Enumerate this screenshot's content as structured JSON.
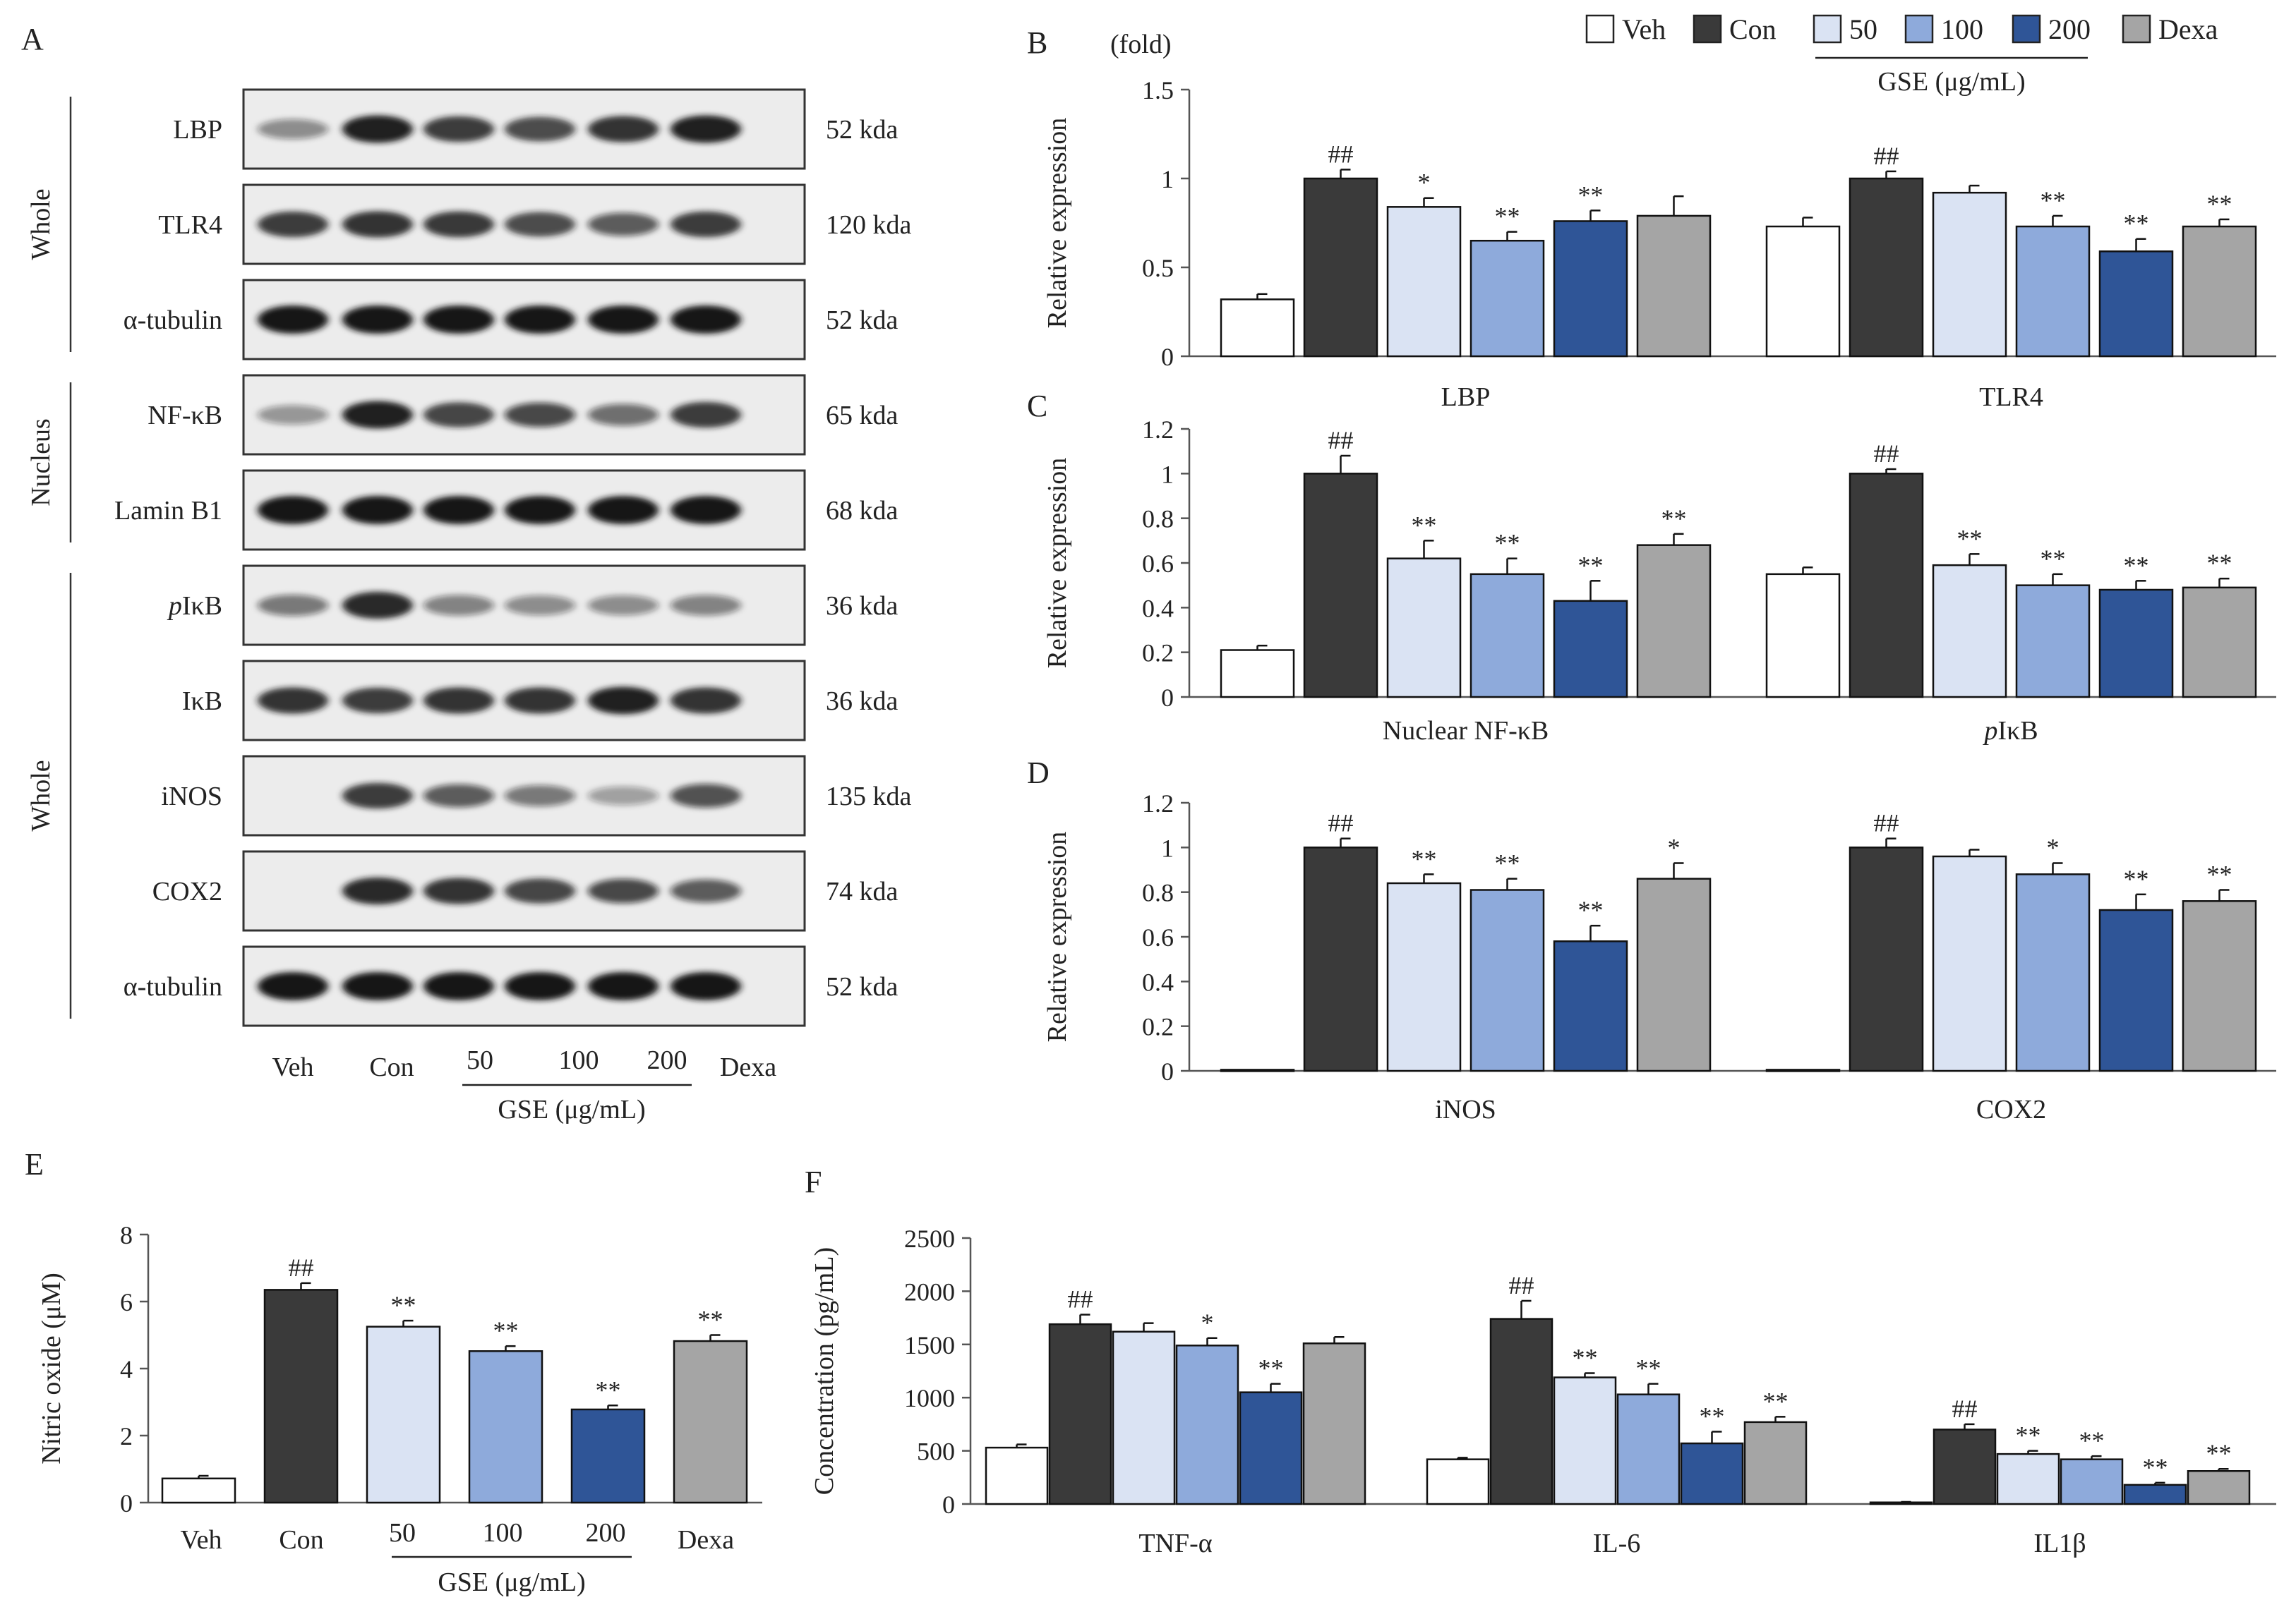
{
  "colors": {
    "veh": "#ffffff",
    "con": "#3a3a3a",
    "g50": "#dae3f3",
    "g100": "#8eaadb",
    "g200": "#2f5597",
    "dexa": "#a5a5a5",
    "axis": "#555555",
    "text": "#222222",
    "blot_bg": "#ececec",
    "band": "#161616"
  },
  "legend": {
    "items": [
      {
        "label": "Veh",
        "color": "#ffffff"
      },
      {
        "label": "Con",
        "color": "#3a3a3a"
      },
      {
        "label": "50",
        "color": "#dae3f3"
      },
      {
        "label": "100",
        "color": "#8eaadb"
      },
      {
        "label": "200",
        "color": "#2f5597"
      },
      {
        "label": "Dexa",
        "color": "#a5a5a5"
      }
    ],
    "group_label": "GSE (μg/mL)"
  },
  "blot": {
    "panel_label": "A",
    "groups": [
      {
        "label": "Whole",
        "rows": [
          0,
          1,
          2
        ]
      },
      {
        "label": "Nucleus",
        "rows": [
          3,
          4
        ]
      },
      {
        "label": "Whole",
        "rows": [
          5,
          6,
          7,
          8,
          9
        ]
      }
    ],
    "rows": [
      {
        "protein": "LBP",
        "italic_prefix": "",
        "size": "52 kda",
        "intensities": [
          0.35,
          0.95,
          0.8,
          0.72,
          0.85,
          0.95
        ]
      },
      {
        "protein": "TLR4",
        "italic_prefix": "",
        "size": "120 kda",
        "intensities": [
          0.8,
          0.85,
          0.82,
          0.72,
          0.6,
          0.8
        ]
      },
      {
        "protein": "α-tubulin",
        "italic_prefix": "",
        "size": "52 kda",
        "intensities": [
          1,
          1,
          1,
          1,
          1,
          1
        ]
      },
      {
        "protein": "NF-κB",
        "italic_prefix": "",
        "size": "65 kda",
        "intensities": [
          0.3,
          0.95,
          0.75,
          0.7,
          0.5,
          0.8
        ]
      },
      {
        "protein": "Lamin B1",
        "italic_prefix": "",
        "size": "68 kda",
        "intensities": [
          1,
          1,
          1,
          1,
          1,
          1
        ]
      },
      {
        "protein": "IκB",
        "italic_prefix": "p",
        "size": "36 kda",
        "intensities": [
          0.45,
          0.9,
          0.4,
          0.35,
          0.35,
          0.4
        ]
      },
      {
        "protein": "IκB",
        "italic_prefix": "",
        "size": "36 kda",
        "intensities": [
          0.85,
          0.8,
          0.85,
          0.85,
          0.95,
          0.85
        ]
      },
      {
        "protein": "iNOS",
        "italic_prefix": "",
        "size": "135 kda",
        "intensities": [
          0,
          0.8,
          0.6,
          0.45,
          0.25,
          0.65
        ]
      },
      {
        "protein": "COX2",
        "italic_prefix": "",
        "size": "74 kda",
        "intensities": [
          0,
          0.9,
          0.85,
          0.75,
          0.7,
          0.6
        ]
      },
      {
        "protein": "α-tubulin",
        "italic_prefix": "",
        "size": "52 kda",
        "intensities": [
          1,
          1,
          1,
          1,
          1,
          1
        ]
      }
    ],
    "lanes": [
      "Veh",
      "Con",
      "50",
      "100",
      "200",
      "Dexa"
    ],
    "group_label": "GSE (μg/mL)"
  },
  "chart_data": [
    {
      "panel": "B",
      "type": "bar",
      "unit_label": "(fold)",
      "ylabel": "Relative expression",
      "ylim": [
        0,
        1.5
      ],
      "yticks": [
        "0",
        "0.5",
        "1",
        "1.5"
      ],
      "ytick_values": [
        0,
        0.5,
        1,
        1.5
      ],
      "groups": [
        {
          "label": "LBP",
          "values": [
            0.32,
            1.0,
            0.84,
            0.65,
            0.76,
            0.79
          ],
          "errors": [
            0.03,
            0.05,
            0.05,
            0.05,
            0.06,
            0.11
          ],
          "sig": [
            "",
            "##",
            "*",
            "**",
            "**",
            ""
          ]
        },
        {
          "label": "TLR4",
          "values": [
            0.73,
            1.0,
            0.92,
            0.73,
            0.59,
            0.73
          ],
          "errors": [
            0.05,
            0.04,
            0.04,
            0.06,
            0.07,
            0.04
          ],
          "sig": [
            "",
            "##",
            "",
            "**",
            "**",
            "**"
          ]
        }
      ]
    },
    {
      "panel": "C",
      "type": "bar",
      "unit_label": "",
      "ylabel": "Relative expression",
      "ylim": [
        0,
        1.2
      ],
      "yticks": [
        "0",
        "0.2",
        "0.4",
        "0.6",
        "0.8",
        "1",
        "1.2"
      ],
      "ytick_values": [
        0,
        0.2,
        0.4,
        0.6,
        0.8,
        1.0,
        1.2
      ],
      "groups": [
        {
          "label": "Nuclear NF-κB",
          "values": [
            0.21,
            1.0,
            0.62,
            0.55,
            0.43,
            0.68
          ],
          "errors": [
            0.02,
            0.08,
            0.08,
            0.07,
            0.09,
            0.05
          ],
          "sig": [
            "",
            "##",
            "**",
            "**",
            "**",
            "**"
          ]
        },
        {
          "label": "IκB",
          "italic_prefix": "p",
          "values": [
            0.55,
            1.0,
            0.59,
            0.5,
            0.48,
            0.49
          ],
          "errors": [
            0.03,
            0.02,
            0.05,
            0.05,
            0.04,
            0.04
          ],
          "sig": [
            "",
            "##",
            "**",
            "**",
            "**",
            "**"
          ]
        }
      ]
    },
    {
      "panel": "D",
      "type": "bar",
      "unit_label": "",
      "ylabel": "Relative expression",
      "ylim": [
        0,
        1.2
      ],
      "yticks": [
        "0",
        "0.2",
        "0.4",
        "0.6",
        "0.8",
        "1",
        "1.2"
      ],
      "ytick_values": [
        0,
        0.2,
        0.4,
        0.6,
        0.8,
        1.0,
        1.2
      ],
      "groups": [
        {
          "label": "iNOS",
          "values": [
            0.005,
            1.0,
            0.84,
            0.81,
            0.58,
            0.86
          ],
          "errors": [
            0,
            0.04,
            0.04,
            0.05,
            0.07,
            0.07
          ],
          "sig": [
            "",
            "##",
            "**",
            "**",
            "**",
            "*"
          ]
        },
        {
          "label": "COX2",
          "values": [
            0.005,
            1.0,
            0.96,
            0.88,
            0.72,
            0.76
          ],
          "errors": [
            0,
            0.04,
            0.03,
            0.05,
            0.07,
            0.05
          ],
          "sig": [
            "",
            "##",
            "",
            "*",
            "**",
            "**"
          ]
        }
      ]
    },
    {
      "panel": "E",
      "type": "bar",
      "ylabel": "Nitric oxide (μM)",
      "ylim": [
        0,
        8
      ],
      "yticks": [
        "0",
        "2",
        "4",
        "6",
        "8"
      ],
      "ytick_values": [
        0,
        2,
        4,
        6,
        8
      ],
      "categories": [
        "Veh",
        "Con",
        "50",
        "100",
        "200",
        "Dexa"
      ],
      "values": [
        0.72,
        6.35,
        5.25,
        4.52,
        2.78,
        4.82
      ],
      "errors": [
        0.08,
        0.2,
        0.18,
        0.15,
        0.12,
        0.18
      ],
      "sig": [
        "",
        "##",
        "**",
        "**",
        "**",
        "**"
      ],
      "group_label": "GSE (μg/mL)"
    },
    {
      "panel": "F",
      "type": "bar",
      "ylabel": "Concentration (pg/mL)",
      "ylim": [
        0,
        2500
      ],
      "yticks": [
        "0",
        "500",
        "1000",
        "1500",
        "2000",
        "2500"
      ],
      "ytick_values": [
        0,
        500,
        1000,
        1500,
        2000,
        2500
      ],
      "groups": [
        {
          "label": "TNF-α",
          "values": [
            530,
            1690,
            1620,
            1490,
            1050,
            1510
          ],
          "errors": [
            30,
            90,
            80,
            70,
            80,
            60
          ],
          "sig": [
            "",
            "##",
            "",
            "*",
            "**",
            ""
          ]
        },
        {
          "label": "IL-6",
          "values": [
            420,
            1740,
            1190,
            1030,
            570,
            770
          ],
          "errors": [
            15,
            170,
            40,
            100,
            110,
            50
          ],
          "sig": [
            "",
            "##",
            "**",
            "**",
            "**",
            "**"
          ]
        },
        {
          "label": "IL1β",
          "values": [
            15,
            700,
            470,
            420,
            180,
            310
          ],
          "errors": [
            5,
            50,
            30,
            30,
            20,
            20
          ],
          "sig": [
            "",
            "##",
            "**",
            "**",
            "**",
            "**"
          ]
        }
      ]
    }
  ]
}
